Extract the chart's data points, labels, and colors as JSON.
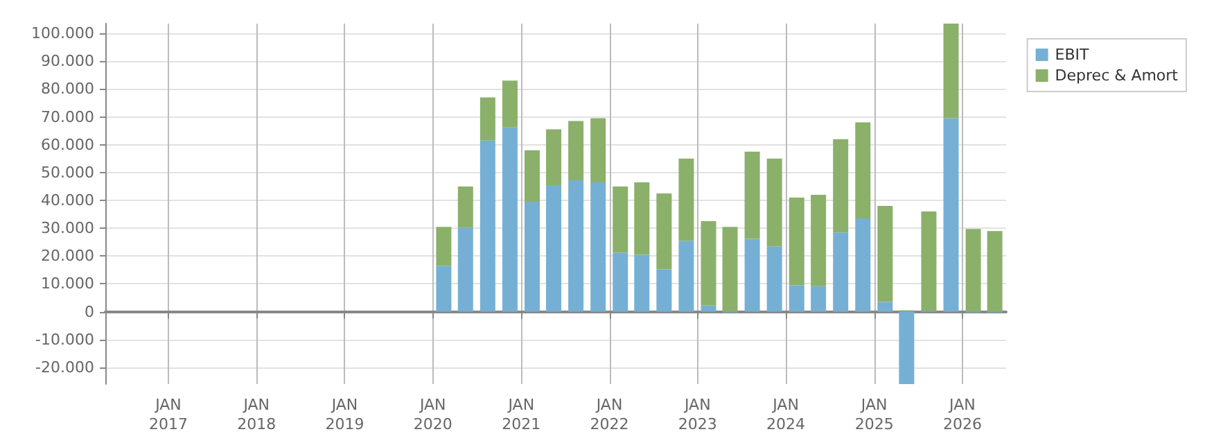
{
  "chart_data": {
    "type": "bar",
    "stacked": true,
    "grid": true,
    "legend": "top right",
    "x": [
      "2020-02-15",
      "2020-05-15",
      "2020-08-15",
      "2020-11-15",
      "2021-02-15",
      "2021-05-15",
      "2021-08-15",
      "2021-11-15",
      "2022-02-15",
      "2022-05-15",
      "2022-08-15",
      "2022-11-15",
      "2023-02-15",
      "2023-05-15",
      "2023-08-15",
      "2023-11-15",
      "2024-02-15",
      "2024-05-15",
      "2024-08-15",
      "2024-11-15",
      "2025-02-15",
      "2025-05-15",
      "2025-08-15",
      "2025-11-15",
      "2026-02-15",
      "2026-05-15"
    ],
    "series": [
      {
        "name": "EBIT",
        "color": "#75b0d4",
        "values": [
          16500,
          30200,
          61500,
          66200,
          39500,
          45500,
          47200,
          46500,
          21200,
          20500,
          15200,
          25500,
          2200,
          -300,
          26200,
          23500,
          9500,
          9200,
          28500,
          33500,
          3500,
          -26000,
          300,
          69500,
          -300,
          -300
        ]
      },
      {
        "name": "Deprec & Amort",
        "color": "#8bb06a",
        "values": [
          14000,
          14800,
          15500,
          16800,
          18500,
          20000,
          21300,
          23000,
          23800,
          26000,
          27300,
          29500,
          30300,
          30500,
          31300,
          31500,
          31500,
          32800,
          33500,
          34500,
          34500,
          500,
          35700,
          34000,
          29700,
          29000
        ]
      }
    ],
    "xlim": [
      "2016-04-15",
      "2026-07-01"
    ],
    "xticks": [
      {
        "value": "2017-01-01",
        "label": "JAN\n2017"
      },
      {
        "value": "2018-01-01",
        "label": "JAN\n2018"
      },
      {
        "value": "2019-01-01",
        "label": "JAN\n2019"
      },
      {
        "value": "2020-01-01",
        "label": "JAN\n2020"
      },
      {
        "value": "2021-01-01",
        "label": "JAN\n2021"
      },
      {
        "value": "2022-01-01",
        "label": "JAN\n2022"
      },
      {
        "value": "2023-01-01",
        "label": "JAN\n2023"
      },
      {
        "value": "2024-01-01",
        "label": "JAN\n2024"
      },
      {
        "value": "2025-01-01",
        "label": "JAN\n2025"
      },
      {
        "value": "2026-01-01",
        "label": "JAN\n2026"
      }
    ],
    "ylim": [
      -26000,
      103500
    ],
    "yticks": [
      {
        "value": -20000,
        "label": "-20.000"
      },
      {
        "value": -10000,
        "label": "-10.000"
      },
      {
        "value": 0,
        "label": "0"
      },
      {
        "value": 10000,
        "label": "10.000"
      },
      {
        "value": 20000,
        "label": "20.000"
      },
      {
        "value": 30000,
        "label": "30.000"
      },
      {
        "value": 40000,
        "label": "40.000"
      },
      {
        "value": 50000,
        "label": "50.000"
      },
      {
        "value": 60000,
        "label": "60.000"
      },
      {
        "value": 70000,
        "label": "70.000"
      },
      {
        "value": 80000,
        "label": "80.000"
      },
      {
        "value": 90000,
        "label": "90.000"
      },
      {
        "value": 100000,
        "label": "100.000"
      }
    ]
  }
}
